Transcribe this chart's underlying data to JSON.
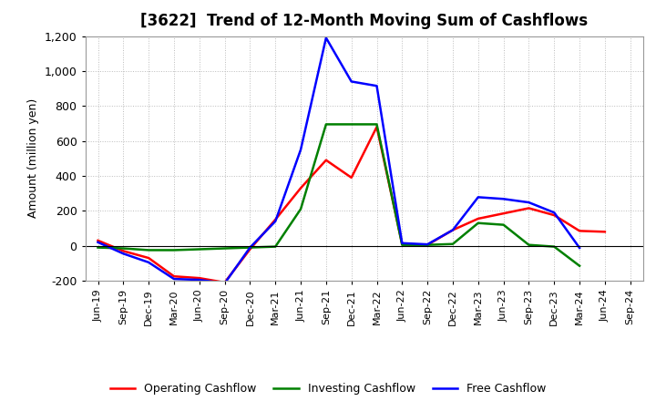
{
  "title": "[3622]  Trend of 12-Month Moving Sum of Cashflows",
  "ylabel": "Amount (million yen)",
  "ylim": [
    -200,
    1200
  ],
  "yticks": [
    -200,
    0,
    200,
    400,
    600,
    800,
    1000,
    1200
  ],
  "x_labels": [
    "Jun-19",
    "Sep-19",
    "Dec-19",
    "Mar-20",
    "Jun-20",
    "Sep-20",
    "Dec-20",
    "Mar-21",
    "Jun-21",
    "Sep-21",
    "Dec-21",
    "Mar-22",
    "Jun-22",
    "Sep-22",
    "Dec-22",
    "Mar-23",
    "Jun-23",
    "Sep-23",
    "Dec-23",
    "Mar-24",
    "Jun-24",
    "Sep-24"
  ],
  "operating": [
    30,
    -30,
    -70,
    -175,
    -185,
    -210,
    -20,
    150,
    330,
    490,
    390,
    680,
    10,
    5,
    90,
    155,
    185,
    215,
    175,
    85,
    80,
    null
  ],
  "investing": [
    -10,
    -15,
    -25,
    -25,
    -20,
    -15,
    -10,
    -5,
    210,
    695,
    695,
    695,
    5,
    5,
    10,
    130,
    120,
    5,
    -5,
    -115,
    null,
    null
  ],
  "free": [
    20,
    -45,
    -95,
    -190,
    -195,
    -215,
    -10,
    140,
    550,
    1190,
    940,
    915,
    15,
    8,
    90,
    278,
    268,
    248,
    190,
    -12,
    null,
    null
  ],
  "operating_color": "#ff0000",
  "investing_color": "#008000",
  "free_color": "#0000ff",
  "background_color": "#ffffff",
  "grid_color": "#aaaaaa",
  "title_fontsize": 12,
  "axis_fontsize": 9,
  "legend_fontsize": 9,
  "tick_fontsize": 8
}
